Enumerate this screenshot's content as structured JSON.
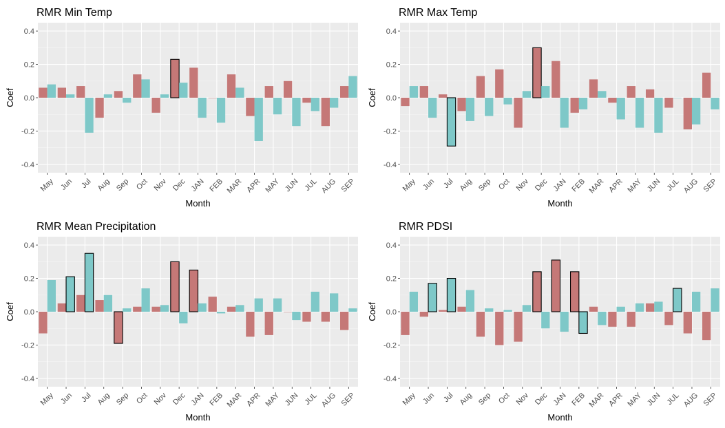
{
  "colors": {
    "panel": "#ebebeb",
    "grid_major": "#ffffff",
    "grid_minor": "#f5f5f5",
    "series_a": "#c57877",
    "series_b": "#7ec8c8",
    "outline": "#000000"
  },
  "chart_data": [
    {
      "type": "bar",
      "title": "RMR Min Temp",
      "xlabel": "Month",
      "ylabel": "Coef",
      "ylim": [
        -0.45,
        0.45
      ],
      "yticks": [
        "-0.4",
        "-0.2",
        "0.0",
        "0.2",
        "0.4"
      ],
      "categories": [
        "May",
        "Jun",
        "Jul",
        "Aug",
        "Sep",
        "Oct",
        "Nov",
        "Dec",
        "JAN",
        "FEB",
        "MAR",
        "APR",
        "MAY",
        "JUN",
        "JUL",
        "AUG",
        "SEP"
      ],
      "series": [
        {
          "values": [
            0.06,
            0.06,
            0.07,
            -0.12,
            0.04,
            0.14,
            -0.09,
            0.23,
            0.18,
            0.0,
            0.14,
            -0.11,
            0.07,
            0.1,
            -0.03,
            -0.17,
            0.07
          ],
          "significant": [
            false,
            false,
            false,
            false,
            false,
            false,
            false,
            true,
            false,
            false,
            false,
            false,
            false,
            false,
            false,
            false,
            false
          ]
        },
        {
          "values": [
            0.08,
            0.02,
            -0.21,
            0.02,
            -0.03,
            0.11,
            0.02,
            0.09,
            -0.12,
            -0.15,
            0.06,
            -0.26,
            -0.1,
            -0.17,
            -0.08,
            -0.06,
            0.13
          ],
          "significant": [
            false,
            false,
            false,
            false,
            false,
            false,
            false,
            false,
            false,
            false,
            false,
            false,
            false,
            false,
            false,
            false,
            false
          ]
        }
      ]
    },
    {
      "type": "bar",
      "title": "RMR Max Temp",
      "xlabel": "Month",
      "ylabel": "Coef",
      "ylim": [
        -0.45,
        0.45
      ],
      "yticks": [
        "-0.4",
        "-0.2",
        "0.0",
        "0.2",
        "0.4"
      ],
      "categories": [
        "May",
        "Jun",
        "Jul",
        "Aug",
        "Sep",
        "Oct",
        "Nov",
        "Dec",
        "JAN",
        "FEB",
        "MAR",
        "APR",
        "MAY",
        "JUN",
        "JUL",
        "AUG",
        "SEP"
      ],
      "series": [
        {
          "values": [
            -0.05,
            0.07,
            0.02,
            -0.08,
            0.13,
            0.17,
            -0.18,
            0.3,
            0.22,
            -0.09,
            0.11,
            -0.03,
            0.07,
            0.05,
            -0.06,
            -0.19,
            0.15
          ],
          "significant": [
            false,
            false,
            false,
            false,
            false,
            false,
            false,
            true,
            false,
            false,
            false,
            false,
            false,
            false,
            false,
            false,
            false
          ]
        },
        {
          "values": [
            0.07,
            -0.12,
            -0.29,
            -0.14,
            -0.11,
            -0.04,
            0.04,
            0.07,
            -0.18,
            -0.07,
            0.04,
            -0.13,
            -0.18,
            -0.21,
            0.0,
            -0.16,
            -0.07
          ],
          "significant": [
            false,
            false,
            true,
            false,
            false,
            false,
            false,
            false,
            false,
            false,
            false,
            false,
            false,
            false,
            false,
            false,
            false
          ]
        }
      ]
    },
    {
      "type": "bar",
      "title": "RMR Mean Precipitation",
      "xlabel": "Month",
      "ylabel": "Coef",
      "ylim": [
        -0.45,
        0.45
      ],
      "yticks": [
        "-0.4",
        "-0.2",
        "0.0",
        "0.2",
        "0.4"
      ],
      "categories": [
        "May",
        "Jun",
        "Jul",
        "Aug",
        "Sep",
        "Oct",
        "Nov",
        "Dec",
        "JAN",
        "FEB",
        "MAR",
        "APR",
        "MAY",
        "JUN",
        "JUL",
        "AUG",
        "SEP"
      ],
      "series": [
        {
          "values": [
            -0.13,
            0.05,
            0.1,
            0.07,
            -0.19,
            0.03,
            0.03,
            0.3,
            0.25,
            0.09,
            0.03,
            -0.15,
            -0.14,
            0.0,
            -0.06,
            -0.06,
            -0.11
          ],
          "significant": [
            false,
            false,
            false,
            false,
            true,
            false,
            false,
            true,
            true,
            false,
            false,
            false,
            false,
            false,
            false,
            false,
            false
          ]
        },
        {
          "values": [
            0.19,
            0.21,
            0.35,
            0.1,
            0.02,
            0.14,
            0.04,
            -0.07,
            0.05,
            -0.01,
            0.04,
            0.08,
            0.08,
            -0.05,
            0.12,
            0.11,
            0.02
          ],
          "significant": [
            false,
            true,
            true,
            false,
            false,
            false,
            false,
            false,
            false,
            false,
            false,
            false,
            false,
            false,
            false,
            false,
            false
          ]
        }
      ]
    },
    {
      "type": "bar",
      "title": "RMR PDSI",
      "xlabel": "Month",
      "ylabel": "Coef",
      "ylim": [
        -0.45,
        0.45
      ],
      "yticks": [
        "-0.4",
        "-0.2",
        "0.0",
        "0.2",
        "0.4"
      ],
      "categories": [
        "May",
        "Jun",
        "Jul",
        "Aug",
        "Sep",
        "Oct",
        "Nov",
        "Dec",
        "JAN",
        "FEB",
        "MAR",
        "APR",
        "MAY",
        "JUN",
        "JUL",
        "AUG",
        "SEP"
      ],
      "series": [
        {
          "values": [
            -0.14,
            -0.03,
            0.01,
            0.03,
            -0.15,
            -0.2,
            -0.18,
            0.24,
            0.31,
            0.24,
            0.03,
            -0.09,
            -0.09,
            0.05,
            -0.08,
            -0.13,
            -0.17
          ],
          "significant": [
            false,
            false,
            false,
            false,
            false,
            false,
            false,
            true,
            true,
            true,
            false,
            false,
            false,
            false,
            false,
            false,
            false
          ]
        },
        {
          "values": [
            0.12,
            0.17,
            0.2,
            0.13,
            0.02,
            0.01,
            0.04,
            -0.1,
            -0.12,
            -0.13,
            -0.08,
            0.03,
            0.05,
            0.06,
            0.14,
            0.12,
            0.14
          ],
          "significant": [
            false,
            true,
            true,
            false,
            false,
            false,
            false,
            false,
            false,
            true,
            false,
            false,
            false,
            false,
            true,
            false,
            false
          ]
        }
      ]
    }
  ]
}
